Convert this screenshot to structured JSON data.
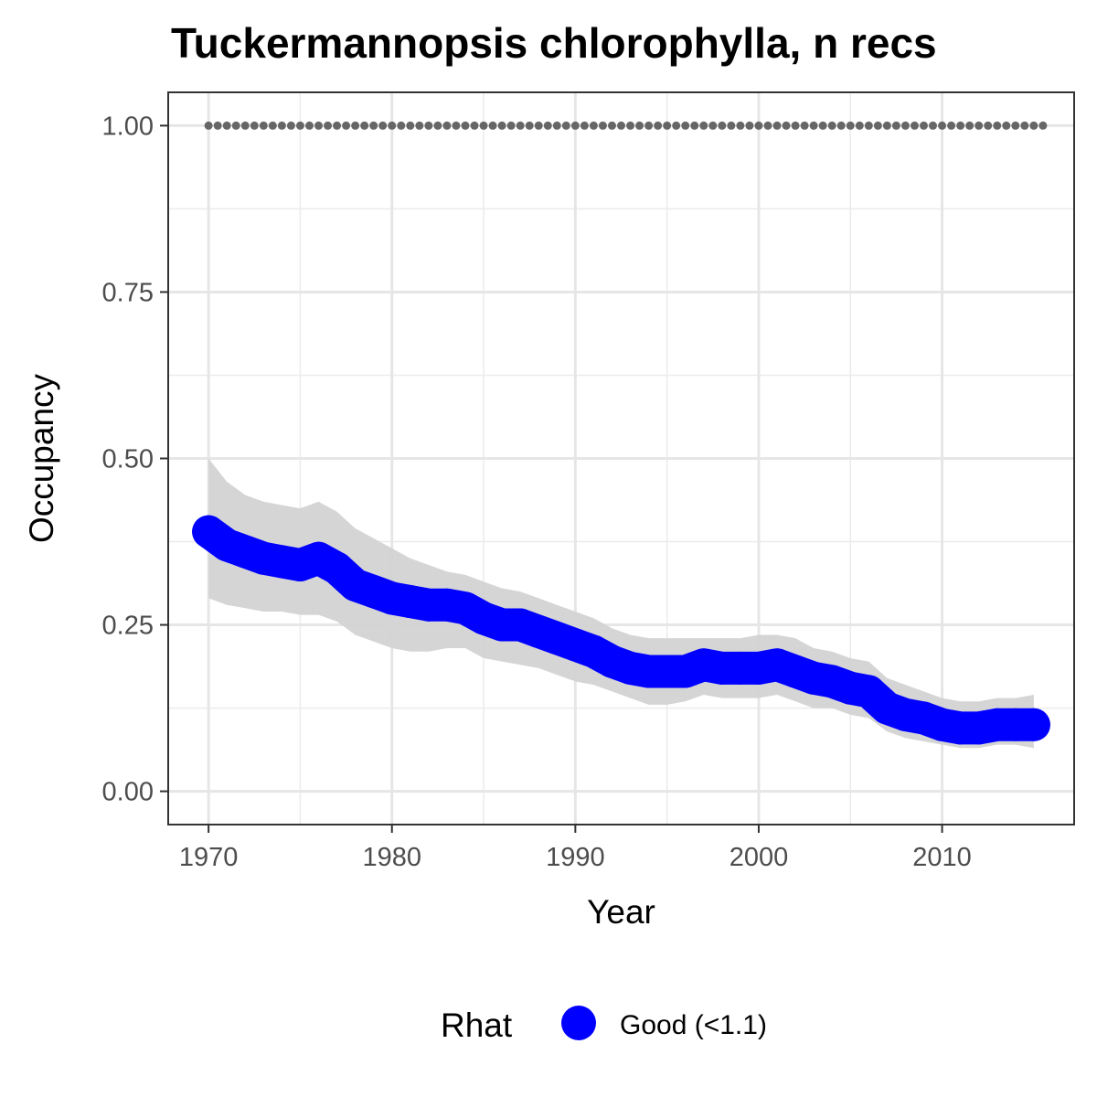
{
  "chart_data": {
    "type": "line",
    "title": "Tuckermannopsis chlorophylla, n recs",
    "xlabel": "Year",
    "ylabel": "Occupancy",
    "xlim": [
      1967.8,
      2017.2
    ],
    "ylim": [
      -0.05,
      1.05
    ],
    "x_ticks": [
      1970,
      1980,
      1990,
      2000,
      2010
    ],
    "x_tick_labels": [
      "1970",
      "1980",
      "1990",
      "2000",
      "2010"
    ],
    "y_ticks": [
      0,
      0.25,
      0.5,
      0.75,
      1
    ],
    "y_tick_labels": [
      "0.00",
      "0.25",
      "0.50",
      "0.75",
      "1.00"
    ],
    "grid": true,
    "years": [
      1970,
      1971,
      1972,
      1973,
      1974,
      1975,
      1976,
      1977,
      1978,
      1979,
      1980,
      1981,
      1982,
      1983,
      1984,
      1985,
      1986,
      1987,
      1988,
      1989,
      1990,
      1991,
      1992,
      1993,
      1994,
      1995,
      1996,
      1997,
      1998,
      1999,
      2000,
      2001,
      2002,
      2003,
      2004,
      2005,
      2006,
      2007,
      2008,
      2009,
      2010,
      2011,
      2012,
      2013,
      2014,
      2015
    ],
    "occupancy": [
      0.39,
      0.37,
      0.36,
      0.35,
      0.345,
      0.34,
      0.35,
      0.335,
      0.31,
      0.3,
      0.29,
      0.285,
      0.28,
      0.28,
      0.275,
      0.26,
      0.25,
      0.25,
      0.24,
      0.23,
      0.22,
      0.21,
      0.195,
      0.185,
      0.18,
      0.18,
      0.18,
      0.19,
      0.185,
      0.185,
      0.185,
      0.19,
      0.18,
      0.17,
      0.165,
      0.155,
      0.15,
      0.125,
      0.115,
      0.11,
      0.1,
      0.095,
      0.095,
      0.1,
      0.1,
      0.1
    ],
    "ci_upper": [
      0.5,
      0.465,
      0.445,
      0.435,
      0.43,
      0.425,
      0.435,
      0.42,
      0.395,
      0.38,
      0.365,
      0.35,
      0.34,
      0.33,
      0.325,
      0.315,
      0.305,
      0.3,
      0.29,
      0.28,
      0.27,
      0.26,
      0.245,
      0.235,
      0.23,
      0.23,
      0.23,
      0.23,
      0.23,
      0.23,
      0.235,
      0.235,
      0.23,
      0.215,
      0.21,
      0.2,
      0.195,
      0.17,
      0.16,
      0.15,
      0.14,
      0.135,
      0.135,
      0.14,
      0.14,
      0.145
    ],
    "ci_lower": [
      0.29,
      0.28,
      0.275,
      0.27,
      0.27,
      0.265,
      0.265,
      0.255,
      0.235,
      0.225,
      0.215,
      0.21,
      0.21,
      0.215,
      0.215,
      0.2,
      0.195,
      0.19,
      0.185,
      0.175,
      0.165,
      0.16,
      0.15,
      0.14,
      0.13,
      0.13,
      0.135,
      0.145,
      0.14,
      0.14,
      0.14,
      0.145,
      0.135,
      0.125,
      0.125,
      0.115,
      0.11,
      0.09,
      0.08,
      0.075,
      0.07,
      0.065,
      0.065,
      0.07,
      0.07,
      0.065
    ],
    "reference_line": {
      "y": 1.0,
      "style": "dotted",
      "color": "#666666"
    },
    "point_color": "#0000ff",
    "ribbon_color": "#d3d3d3",
    "legend": {
      "title": "Rhat",
      "position": "bottom",
      "entries": [
        {
          "label": "Good (<1.1)",
          "color": "#0000ff"
        }
      ]
    }
  }
}
